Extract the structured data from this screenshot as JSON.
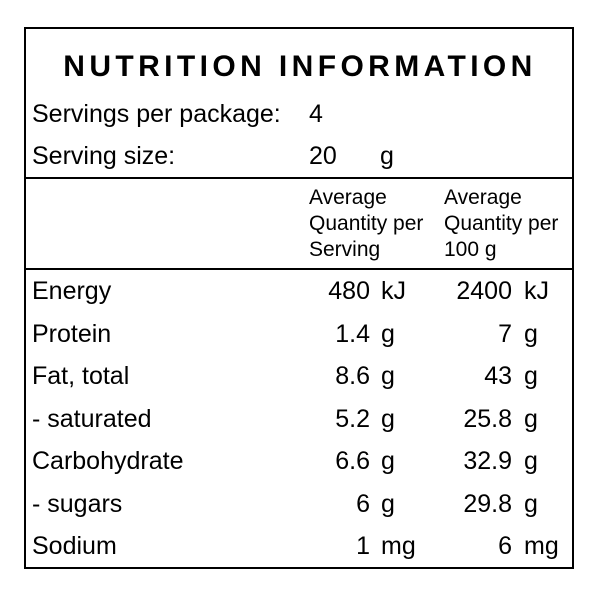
{
  "label": {
    "title": "NUTRITION INFORMATION",
    "servings_label": "Servings per package:",
    "servings_value": "4",
    "serving_size_label": "Serving size:",
    "serving_size_value": "20",
    "serving_size_unit": "g",
    "columns": [
      "Average Quantity per Serving",
      "Average Quantity per 100 g"
    ],
    "rows": [
      {
        "name": "Energy",
        "per_serving": "480",
        "per_serving_unit": "kJ",
        "per_100g": "2400",
        "per_100g_unit": "kJ"
      },
      {
        "name": "Protein",
        "per_serving": "1.4",
        "per_serving_unit": "g",
        "per_100g": "7",
        "per_100g_unit": "g"
      },
      {
        "name": "Fat, total",
        "per_serving": "8.6",
        "per_serving_unit": "g",
        "per_100g": "43",
        "per_100g_unit": "g"
      },
      {
        "name": "- saturated",
        "per_serving": "5.2",
        "per_serving_unit": "g",
        "per_100g": "25.8",
        "per_100g_unit": "g"
      },
      {
        "name": "Carbohydrate",
        "per_serving": "6.6",
        "per_serving_unit": "g",
        "per_100g": "32.9",
        "per_100g_unit": "g"
      },
      {
        "name": "- sugars",
        "per_serving": "6",
        "per_serving_unit": "g",
        "per_100g": "29.8",
        "per_100g_unit": "g"
      },
      {
        "name": "Sodium",
        "per_serving": "1",
        "per_serving_unit": "mg",
        "per_100g": "6",
        "per_100g_unit": "mg"
      }
    ]
  }
}
